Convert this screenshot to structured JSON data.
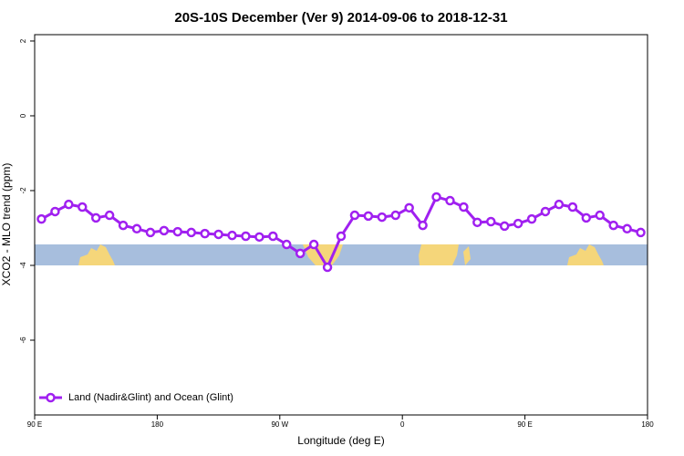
{
  "chart_data": {
    "type": "line",
    "title": "20S-10S December (Ver 9)   2014-09-06 to 2018-12-31",
    "x_label": "Longitude (deg E)",
    "y_label": "XCO2 - MLO trend (ppm)",
    "x": [
      95,
      105,
      115,
      125,
      135,
      145,
      155,
      165,
      175,
      185,
      195,
      205,
      215,
      225,
      235,
      245,
      255,
      265,
      275,
      285,
      295,
      305,
      315,
      325,
      335,
      345,
      355,
      365,
      375,
      385,
      395,
      405,
      415,
      425,
      435,
      445,
      455,
      465,
      475,
      485,
      495,
      505,
      515,
      525,
      535
    ],
    "series": [
      {
        "name": "Land (Nadir&Glint) and Ocean (Glint)",
        "color": "#a020f0",
        "values": [
          -2.76,
          -2.56,
          -2.37,
          -2.44,
          -2.73,
          -2.66,
          -2.93,
          -3.02,
          -3.12,
          -3.07,
          -3.1,
          -3.12,
          -3.15,
          -3.17,
          -3.2,
          -3.22,
          -3.24,
          -3.22,
          -3.44,
          -3.68,
          -3.44,
          -4.05,
          -3.22,
          -2.66,
          -2.68,
          -2.71,
          -2.66,
          -2.46,
          -2.93,
          -2.17,
          -2.27,
          -2.44,
          -2.85,
          -2.83,
          -2.95,
          -2.88,
          -2.76,
          -2.56,
          -2.37,
          -2.44,
          -2.73,
          -2.66,
          -2.93,
          -3.02,
          -3.12
        ]
      }
    ],
    "xlim": [
      90,
      540
    ],
    "xticks": [
      {
        "value": 90,
        "label": "90 E"
      },
      180,
      {
        "value": 270,
        "label": "90 W"
      },
      {
        "value": 360,
        "label": "0"
      },
      {
        "value": 450,
        "label": "90 E"
      },
      {
        "value": 540,
        "label": "180"
      }
    ],
    "ylim": [
      -8,
      2.17
    ],
    "yticks": [
      2,
      0,
      -2,
      -4,
      -6
    ],
    "legend": "bottomleft"
  }
}
